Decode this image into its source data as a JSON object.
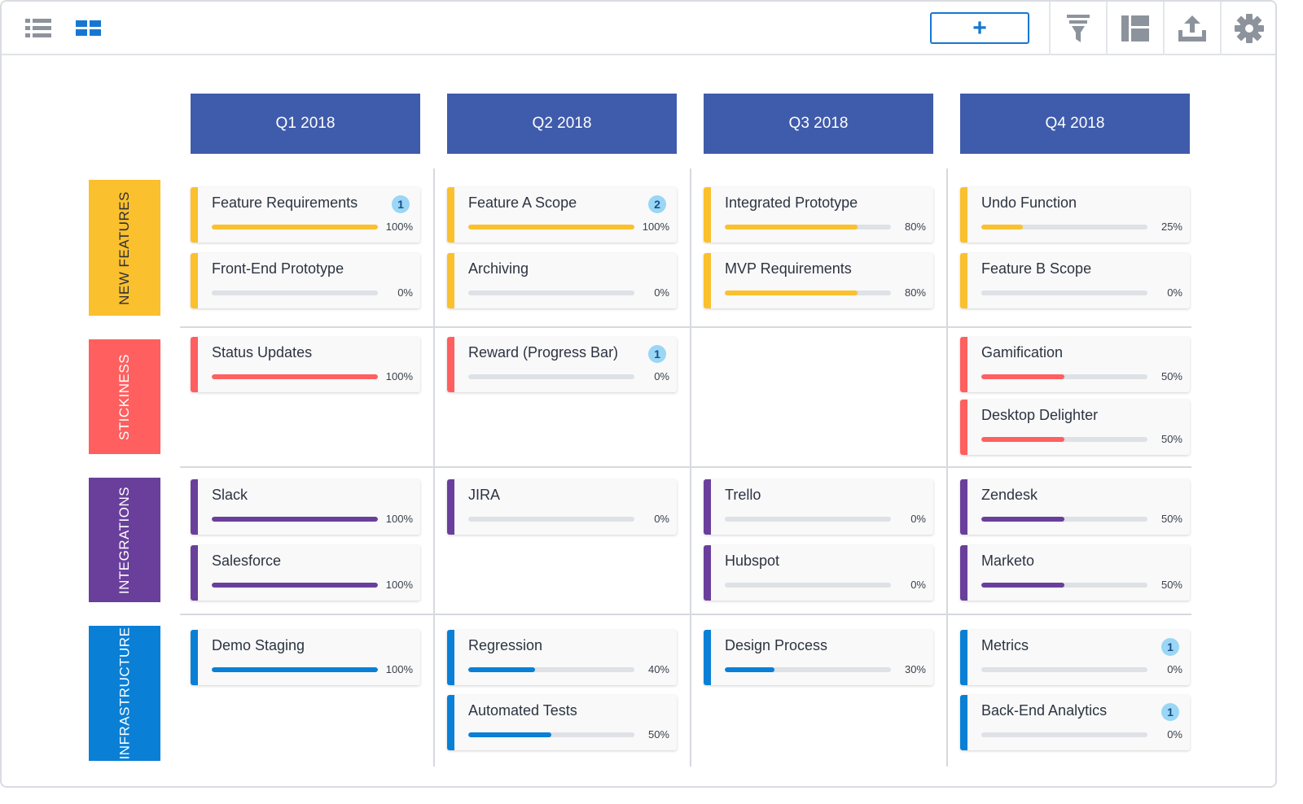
{
  "toolbar": {
    "left_icons": [
      "list-view-icon",
      "board-view-icon"
    ],
    "add_label": "+",
    "right_icons": [
      "filter-icon",
      "layout-icon",
      "export-icon",
      "settings-icon"
    ]
  },
  "colors": {
    "new_features": "#fbc02d",
    "stickiness": "#ff5f5f",
    "integrations": "#6a3f9b",
    "infrastructure": "#0a7fd6",
    "header": "#3f5bab"
  },
  "columns": [
    "Q1 2018",
    "Q2 2018",
    "Q3 2018",
    "Q4 2018"
  ],
  "rows": [
    {
      "label": "NEW FEATURES",
      "cells": [
        [
          {
            "title": "Feature Requirements",
            "percent": "100%",
            "progress": 100,
            "badge": "1"
          },
          {
            "title": "Front-End Prototype",
            "percent": "0%",
            "progress": 0
          }
        ],
        [
          {
            "title": "Feature A Scope",
            "percent": "100%",
            "progress": 100,
            "badge": "2"
          },
          {
            "title": "Archiving",
            "percent": "0%",
            "progress": 0
          }
        ],
        [
          {
            "title": "Integrated Prototype",
            "percent": "80%",
            "progress": 80
          },
          {
            "title": "MVP Requirements",
            "percent": "80%",
            "progress": 80
          }
        ],
        [
          {
            "title": "Undo Function",
            "percent": "25%",
            "progress": 25
          },
          {
            "title": "Feature B Scope",
            "percent": "0%",
            "progress": 0
          }
        ]
      ]
    },
    {
      "label": "STICKINESS",
      "cells": [
        [
          {
            "title": "Status Updates",
            "percent": "100%",
            "progress": 100
          }
        ],
        [
          {
            "title": "Reward (Progress Bar)",
            "percent": "0%",
            "progress": 0,
            "badge": "1"
          }
        ],
        [],
        [
          {
            "title": "Gamification",
            "percent": "50%",
            "progress": 50
          },
          {
            "title": "Desktop Delighter",
            "percent": "50%",
            "progress": 50
          }
        ]
      ]
    },
    {
      "label": "INTEGRATIONS",
      "cells": [
        [
          {
            "title": "Slack",
            "percent": "100%",
            "progress": 100
          },
          {
            "title": "Salesforce",
            "percent": "100%",
            "progress": 100
          }
        ],
        [
          {
            "title": "JIRA",
            "percent": "0%",
            "progress": 0
          }
        ],
        [
          {
            "title": "Trello",
            "percent": "0%",
            "progress": 0
          },
          {
            "title": "Hubspot",
            "percent": "0%",
            "progress": 0
          }
        ],
        [
          {
            "title": "Zendesk",
            "percent": "50%",
            "progress": 50
          },
          {
            "title": "Marketo",
            "percent": "50%",
            "progress": 50
          }
        ]
      ]
    },
    {
      "label": "INFRASTRUCTURE",
      "cells": [
        [
          {
            "title": "Demo Staging",
            "percent": "100%",
            "progress": 100
          }
        ],
        [
          {
            "title": "Regression",
            "percent": "40%",
            "progress": 40
          },
          {
            "title": "Automated Tests",
            "percent": "50%",
            "progress": 50
          }
        ],
        [
          {
            "title": "Design Process",
            "percent": "30%",
            "progress": 30
          }
        ],
        [
          {
            "title": "Metrics",
            "percent": "0%",
            "progress": 0,
            "badge": "1"
          },
          {
            "title": "Back-End Analytics",
            "percent": "0%",
            "progress": 0,
            "badge": "1"
          }
        ]
      ]
    }
  ]
}
